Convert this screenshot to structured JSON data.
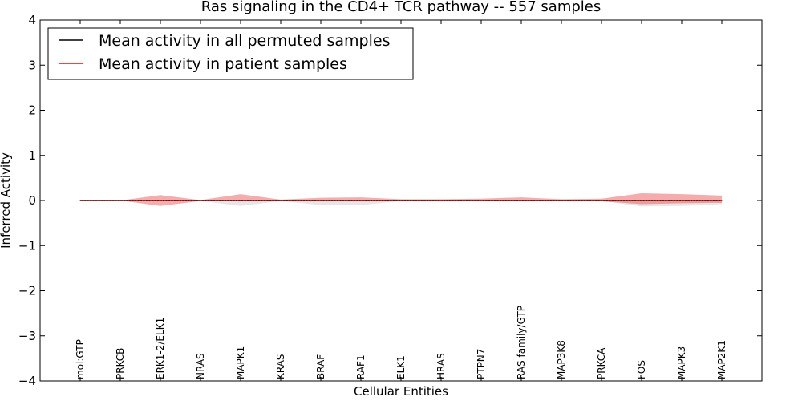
{
  "chart_data": {
    "type": "line",
    "title": "Ras signaling in the CD4+ TCR pathway -- 557 samples",
    "xlabel": "Cellular Entities",
    "ylabel": "Inferred Activity",
    "ylim": [
      -4,
      4
    ],
    "yticks": [
      4,
      3,
      2,
      1,
      0,
      -1,
      -2,
      -3,
      -4
    ],
    "ytick_labels": [
      "4",
      "3",
      "2",
      "1",
      "0",
      "−1",
      "−2",
      "−3",
      "−4"
    ],
    "grid": false,
    "legend_position": "top-left",
    "categories": [
      "mol:GTP",
      "PRKCB",
      "ERK1-2/ELK1",
      "NRAS",
      "MAPK1",
      "KRAS",
      "BRAF",
      "RAF1",
      "ELK1",
      "HRAS",
      "PTPN7",
      "RAS family/GTP",
      "MAP3K8",
      "PRKCA",
      "FOS",
      "MAPK3",
      "MAP2K1"
    ],
    "series": [
      {
        "name": "Mean activity in all permuted samples",
        "color": "#000000",
        "style": "solid",
        "values": [
          0,
          0,
          0,
          0,
          0,
          0,
          0,
          0,
          0,
          0,
          0,
          0,
          0,
          0,
          0,
          0,
          0
        ],
        "band_upper": [
          0,
          0,
          0.01,
          0.01,
          0.01,
          0.01,
          0.01,
          0.01,
          0.01,
          0.01,
          0.01,
          0.01,
          0.01,
          0.01,
          0.01,
          0.01,
          0.01
        ],
        "band_lower": [
          0,
          0,
          -0.01,
          -0.01,
          -0.12,
          -0.01,
          -0.1,
          -0.1,
          -0.01,
          -0.01,
          -0.01,
          -0.01,
          -0.01,
          -0.01,
          -0.13,
          -0.12,
          -0.08
        ]
      },
      {
        "name": "Mean activity in patient samples",
        "color": "#ff0000",
        "style": "dotted",
        "values": [
          0,
          0,
          0,
          0,
          0,
          0,
          0,
          0,
          0,
          0,
          0,
          0,
          0,
          0,
          0,
          0,
          0
        ],
        "band_upper": [
          0,
          0,
          0.12,
          0.01,
          0.14,
          0.02,
          0.06,
          0.07,
          0.03,
          0.03,
          0.04,
          0.07,
          0.03,
          0.04,
          0.16,
          0.14,
          0.11
        ],
        "band_lower": [
          0,
          0,
          -0.12,
          -0.01,
          -0.02,
          -0.02,
          -0.02,
          -0.02,
          -0.02,
          -0.02,
          -0.02,
          -0.02,
          -0.02,
          -0.02,
          -0.08,
          -0.06,
          -0.05
        ]
      }
    ]
  }
}
